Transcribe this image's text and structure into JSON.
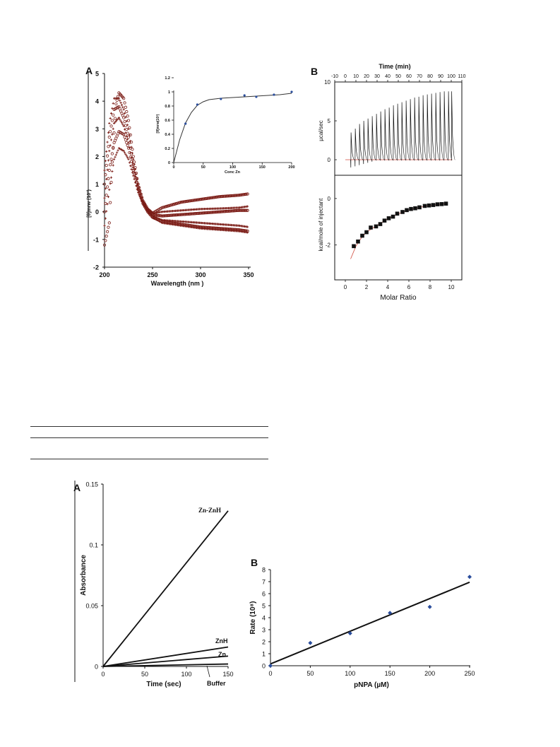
{
  "colors": {
    "cd_marker": "#7b1c16",
    "inset_point": "#2a4d9c",
    "itc_fit": "#d04a3c",
    "itc_marker": "#111111",
    "ink": "#111111"
  },
  "figure_top": {
    "panel_a": {
      "label": "A",
      "xlabel": "Wavelength (nm )",
      "ylabel": "[θ]mrw (10³)",
      "xticks": [
        "200",
        "250",
        "300",
        "350"
      ],
      "yticks": [
        "5",
        "4",
        "3",
        "2",
        "1",
        "0",
        "-1",
        "-2"
      ],
      "inset": {
        "xlabel": "Conc Zn",
        "ylabel": "[θ]mrw(10³)",
        "xticks": [
          "0",
          "50",
          "100",
          "150",
          "200"
        ],
        "yticks": [
          "1.2",
          "1",
          "0.8",
          "0.6",
          "0.4",
          "0.2",
          "0"
        ]
      }
    },
    "panel_b": {
      "label": "B",
      "top_xlabel": "Time (min)",
      "top_xticks": [
        "-10",
        "0",
        "10",
        "20",
        "30",
        "40",
        "50",
        "60",
        "70",
        "80",
        "90",
        "100",
        "110"
      ],
      "upper_ylabel": "µcal/sec",
      "upper_yticks": [
        "10",
        "5",
        "0"
      ],
      "lower_ylabel": "kcal/mole of injectant",
      "lower_yticks": [
        "0",
        "-2"
      ],
      "bottom_xlabel": "Molar Ratio",
      "bottom_xticks": [
        "0",
        "2",
        "4",
        "6",
        "8",
        "10"
      ]
    }
  },
  "figure_bottom": {
    "panel_a": {
      "label": "A",
      "xlabel": "Time (sec)",
      "ylabel": "Absorbance",
      "xticks": [
        "0",
        "50",
        "100",
        "150"
      ],
      "yticks": [
        "0.15",
        "0.1",
        "0.05",
        "0"
      ],
      "line_labels": [
        "Zn-ZnH",
        "ZnH",
        "Zn",
        "Buffer"
      ]
    },
    "panel_b": {
      "label": "B",
      "xlabel": "pNPA (µM)",
      "ylabel": "Rate (10⁸)",
      "xticks": [
        "0",
        "50",
        "100",
        "150",
        "200",
        "250"
      ],
      "yticks": [
        "8",
        "7",
        "6",
        "5",
        "4",
        "3",
        "2",
        "1",
        "0"
      ]
    }
  },
  "chart_data": [
    {
      "type": "scatter",
      "xlabel": "Wavelength (nm )",
      "ylabel": "[θ]mrw (10³)",
      "xlim": [
        200,
        350
      ],
      "ylim": [
        -2,
        5
      ],
      "grid": false,
      "series": [
        {
          "points": [
            [
              200,
              -1.2
            ],
            [
              205,
              -0.4
            ],
            [
              208,
              1.8
            ],
            [
              212,
              3.9
            ],
            [
              215,
              4.3
            ],
            [
              220,
              4.1
            ],
            [
              225,
              3.3
            ],
            [
              230,
              2.0
            ],
            [
              235,
              1.0
            ],
            [
              240,
              0.4
            ],
            [
              245,
              0.1
            ],
            [
              250,
              -0.05
            ],
            [
              260,
              0.15
            ],
            [
              280,
              0.35
            ],
            [
              300,
              0.45
            ],
            [
              320,
              0.55
            ],
            [
              340,
              0.6
            ],
            [
              350,
              0.65
            ]
          ]
        },
        {
          "points": [
            [
              200,
              1.5
            ],
            [
              205,
              3.2
            ],
            [
              210,
              4.1
            ],
            [
              215,
              4.1
            ],
            [
              220,
              3.7
            ],
            [
              225,
              3.0
            ],
            [
              230,
              1.9
            ],
            [
              235,
              1.0
            ],
            [
              240,
              0.4
            ],
            [
              245,
              0.1
            ],
            [
              250,
              -0.05
            ],
            [
              260,
              0.0
            ],
            [
              280,
              0.05
            ],
            [
              300,
              0.1
            ],
            [
              320,
              0.12
            ],
            [
              340,
              0.15
            ],
            [
              350,
              0.2
            ]
          ]
        },
        {
          "points": [
            [
              200,
              1.0
            ],
            [
              205,
              2.7
            ],
            [
              210,
              3.7
            ],
            [
              215,
              3.8
            ],
            [
              220,
              3.4
            ],
            [
              225,
              2.7
            ],
            [
              230,
              1.7
            ],
            [
              235,
              0.9
            ],
            [
              240,
              0.35
            ],
            [
              245,
              0.05
            ],
            [
              250,
              -0.1
            ],
            [
              260,
              -0.15
            ],
            [
              280,
              -0.1
            ],
            [
              300,
              -0.05
            ],
            [
              320,
              0.0
            ],
            [
              340,
              0.05
            ],
            [
              350,
              0.05
            ]
          ]
        },
        {
          "points": [
            [
              200,
              0.5
            ],
            [
              205,
              2.2
            ],
            [
              210,
              3.2
            ],
            [
              215,
              3.4
            ],
            [
              220,
              3.1
            ],
            [
              225,
              2.5
            ],
            [
              230,
              1.6
            ],
            [
              235,
              0.8
            ],
            [
              240,
              0.3
            ],
            [
              245,
              0.0
            ],
            [
              250,
              -0.15
            ],
            [
              260,
              -0.3
            ],
            [
              280,
              -0.35
            ],
            [
              300,
              -0.4
            ],
            [
              320,
              -0.45
            ],
            [
              340,
              -0.5
            ],
            [
              350,
              -0.55
            ]
          ]
        },
        {
          "points": [
            [
              200,
              0.0
            ],
            [
              205,
              1.5
            ],
            [
              210,
              2.5
            ],
            [
              215,
              2.9
            ],
            [
              220,
              2.8
            ],
            [
              225,
              2.3
            ],
            [
              230,
              1.5
            ],
            [
              235,
              0.8
            ],
            [
              240,
              0.3
            ],
            [
              245,
              0.0
            ],
            [
              250,
              -0.2
            ],
            [
              260,
              -0.35
            ],
            [
              280,
              -0.45
            ],
            [
              300,
              -0.55
            ],
            [
              320,
              -0.6
            ],
            [
              340,
              -0.65
            ],
            [
              350,
              -0.7
            ]
          ]
        },
        {
          "points": [
            [
              200,
              -0.5
            ],
            [
              205,
              0.8
            ],
            [
              210,
              1.9
            ],
            [
              215,
              2.3
            ],
            [
              220,
              2.2
            ],
            [
              225,
              1.9
            ],
            [
              230,
              1.3
            ],
            [
              235,
              0.7
            ],
            [
              240,
              0.3
            ],
            [
              245,
              0.0
            ],
            [
              250,
              -0.2
            ],
            [
              260,
              -0.4
            ],
            [
              280,
              -0.5
            ],
            [
              300,
              -0.6
            ],
            [
              320,
              -0.65
            ],
            [
              340,
              -0.7
            ],
            [
              350,
              -0.75
            ]
          ]
        }
      ]
    },
    {
      "type": "scatter",
      "xlabel": "Conc Zn",
      "ylabel": "[θ]mrw(10³)",
      "xlim": [
        0,
        200
      ],
      "ylim": [
        0,
        1.2
      ],
      "points": [
        [
          20,
          0.55
        ],
        [
          40,
          0.82
        ],
        [
          80,
          0.9
        ],
        [
          120,
          0.95
        ],
        [
          140,
          0.93
        ],
        [
          170,
          0.96
        ],
        [
          200,
          1.0
        ]
      ],
      "fit": [
        [
          0,
          0.0
        ],
        [
          10,
          0.32
        ],
        [
          20,
          0.56
        ],
        [
          30,
          0.71
        ],
        [
          40,
          0.81
        ],
        [
          50,
          0.86
        ],
        [
          60,
          0.89
        ],
        [
          80,
          0.91
        ],
        [
          100,
          0.92
        ],
        [
          120,
          0.93
        ],
        [
          140,
          0.94
        ],
        [
          160,
          0.95
        ],
        [
          180,
          0.96
        ],
        [
          200,
          0.98
        ]
      ]
    },
    {
      "type": "line",
      "top_xlabel": "Time (min)",
      "xlim": [
        -10,
        110
      ],
      "ylabel": "µcal/sec",
      "ylim": [
        -2,
        10
      ],
      "injection_times": [
        5,
        9,
        13,
        17,
        21,
        25,
        29,
        33,
        37,
        41,
        45,
        49,
        53,
        57,
        61,
        65,
        69,
        73,
        77,
        81,
        85,
        89,
        93,
        97,
        100
      ],
      "peak_heights": [
        3.5,
        4.0,
        4.6,
        5.0,
        5.3,
        5.6,
        5.9,
        6.2,
        6.5,
        6.7,
        7.0,
        7.2,
        7.4,
        7.6,
        7.8,
        8.0,
        8.1,
        8.3,
        8.4,
        8.5,
        8.6,
        8.7,
        8.8,
        8.8,
        8.8
      ]
    },
    {
      "type": "scatter",
      "xlabel": "Molar Ratio",
      "ylabel": "kcal/mole of injectant",
      "xlim": [
        -1,
        11
      ],
      "ylim": [
        -3.5,
        1
      ],
      "points": [
        [
          0.8,
          -2.05
        ],
        [
          1.2,
          -1.85
        ],
        [
          1.6,
          -1.6
        ],
        [
          2.0,
          -1.45
        ],
        [
          2.4,
          -1.25
        ],
        [
          2.9,
          -1.2
        ],
        [
          3.3,
          -1.1
        ],
        [
          3.7,
          -0.95
        ],
        [
          4.1,
          -0.85
        ],
        [
          4.5,
          -0.78
        ],
        [
          4.9,
          -0.65
        ],
        [
          5.4,
          -0.58
        ],
        [
          5.8,
          -0.5
        ],
        [
          6.2,
          -0.45
        ],
        [
          6.6,
          -0.42
        ],
        [
          7.0,
          -0.38
        ],
        [
          7.5,
          -0.32
        ],
        [
          7.9,
          -0.3
        ],
        [
          8.3,
          -0.28
        ],
        [
          8.7,
          -0.25
        ],
        [
          9.1,
          -0.24
        ],
        [
          9.5,
          -0.22
        ]
      ],
      "fit": [
        [
          0.5,
          -2.6
        ],
        [
          1.0,
          -2.05
        ],
        [
          1.5,
          -1.7
        ],
        [
          2.0,
          -1.45
        ],
        [
          3.0,
          -1.15
        ],
        [
          4.0,
          -0.88
        ],
        [
          5.0,
          -0.66
        ],
        [
          6.0,
          -0.5
        ],
        [
          7.0,
          -0.38
        ],
        [
          8.0,
          -0.3
        ],
        [
          9.0,
          -0.24
        ],
        [
          9.6,
          -0.21
        ]
      ]
    },
    {
      "type": "line",
      "xlabel": "Time (sec)",
      "ylabel": "Absorbance",
      "xlim": [
        0,
        150
      ],
      "ylim": [
        0,
        0.15
      ],
      "series": [
        {
          "name": "Zn-ZnH",
          "points": [
            [
              0,
              0
            ],
            [
              150,
              0.128
            ]
          ]
        },
        {
          "name": "ZnH",
          "points": [
            [
              0,
              0
            ],
            [
              150,
              0.016
            ]
          ]
        },
        {
          "name": "Zn",
          "points": [
            [
              0,
              0
            ],
            [
              150,
              0.0085
            ]
          ]
        },
        {
          "name": "Buffer",
          "points": [
            [
              0,
              0
            ],
            [
              150,
              0.002
            ]
          ]
        }
      ]
    },
    {
      "type": "scatter",
      "xlabel": "pNPA (µM)",
      "ylabel": "Rate (10⁸)",
      "xlim": [
        0,
        250
      ],
      "ylim": [
        0,
        8
      ],
      "points": [
        [
          0,
          0.0
        ],
        [
          50,
          1.9
        ],
        [
          100,
          2.7
        ],
        [
          150,
          4.4
        ],
        [
          200,
          4.9
        ],
        [
          250,
          7.4
        ]
      ],
      "fit": [
        [
          0,
          0.15
        ],
        [
          250,
          6.95
        ]
      ]
    }
  ]
}
